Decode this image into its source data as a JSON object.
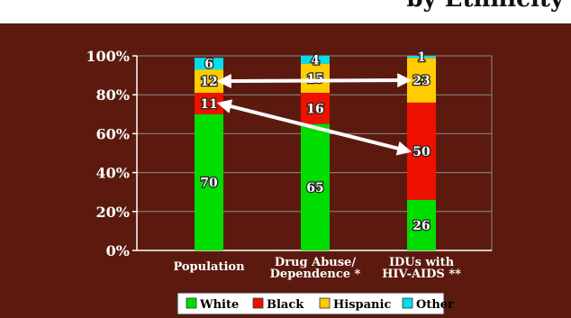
{
  "title_fragment": "by Ethnicity",
  "chart_data": {
    "type": "bar",
    "stacked": true,
    "categories": [
      "Population",
      "Drug Abuse/\nDependence *",
      "IDUs with\nHIV-AIDS **"
    ],
    "series": [
      {
        "name": "White",
        "color": "#00dd00",
        "values": [
          70,
          65,
          26
        ]
      },
      {
        "name": "Black",
        "color": "#ee1100",
        "values": [
          11,
          16,
          50
        ]
      },
      {
        "name": "Hispanic",
        "color": "#ffcc00",
        "values": [
          12,
          15,
          23
        ]
      },
      {
        "name": "Other",
        "color": "#00ddee",
        "values": [
          6,
          4,
          1
        ]
      }
    ],
    "yticks": [
      "0%",
      "20%",
      "40%",
      "60%",
      "80%",
      "100%"
    ],
    "ylim": [
      0,
      100
    ],
    "grid": true,
    "legend_position": "bottom",
    "annotations": [
      {
        "type": "double-arrow",
        "from": {
          "category": 0,
          "series": "Hispanic"
        },
        "to": {
          "category": 2,
          "series": "Hispanic"
        }
      },
      {
        "type": "double-arrow",
        "from": {
          "category": 0,
          "series": "Black"
        },
        "to": {
          "category": 2,
          "series": "Black"
        }
      }
    ]
  }
}
